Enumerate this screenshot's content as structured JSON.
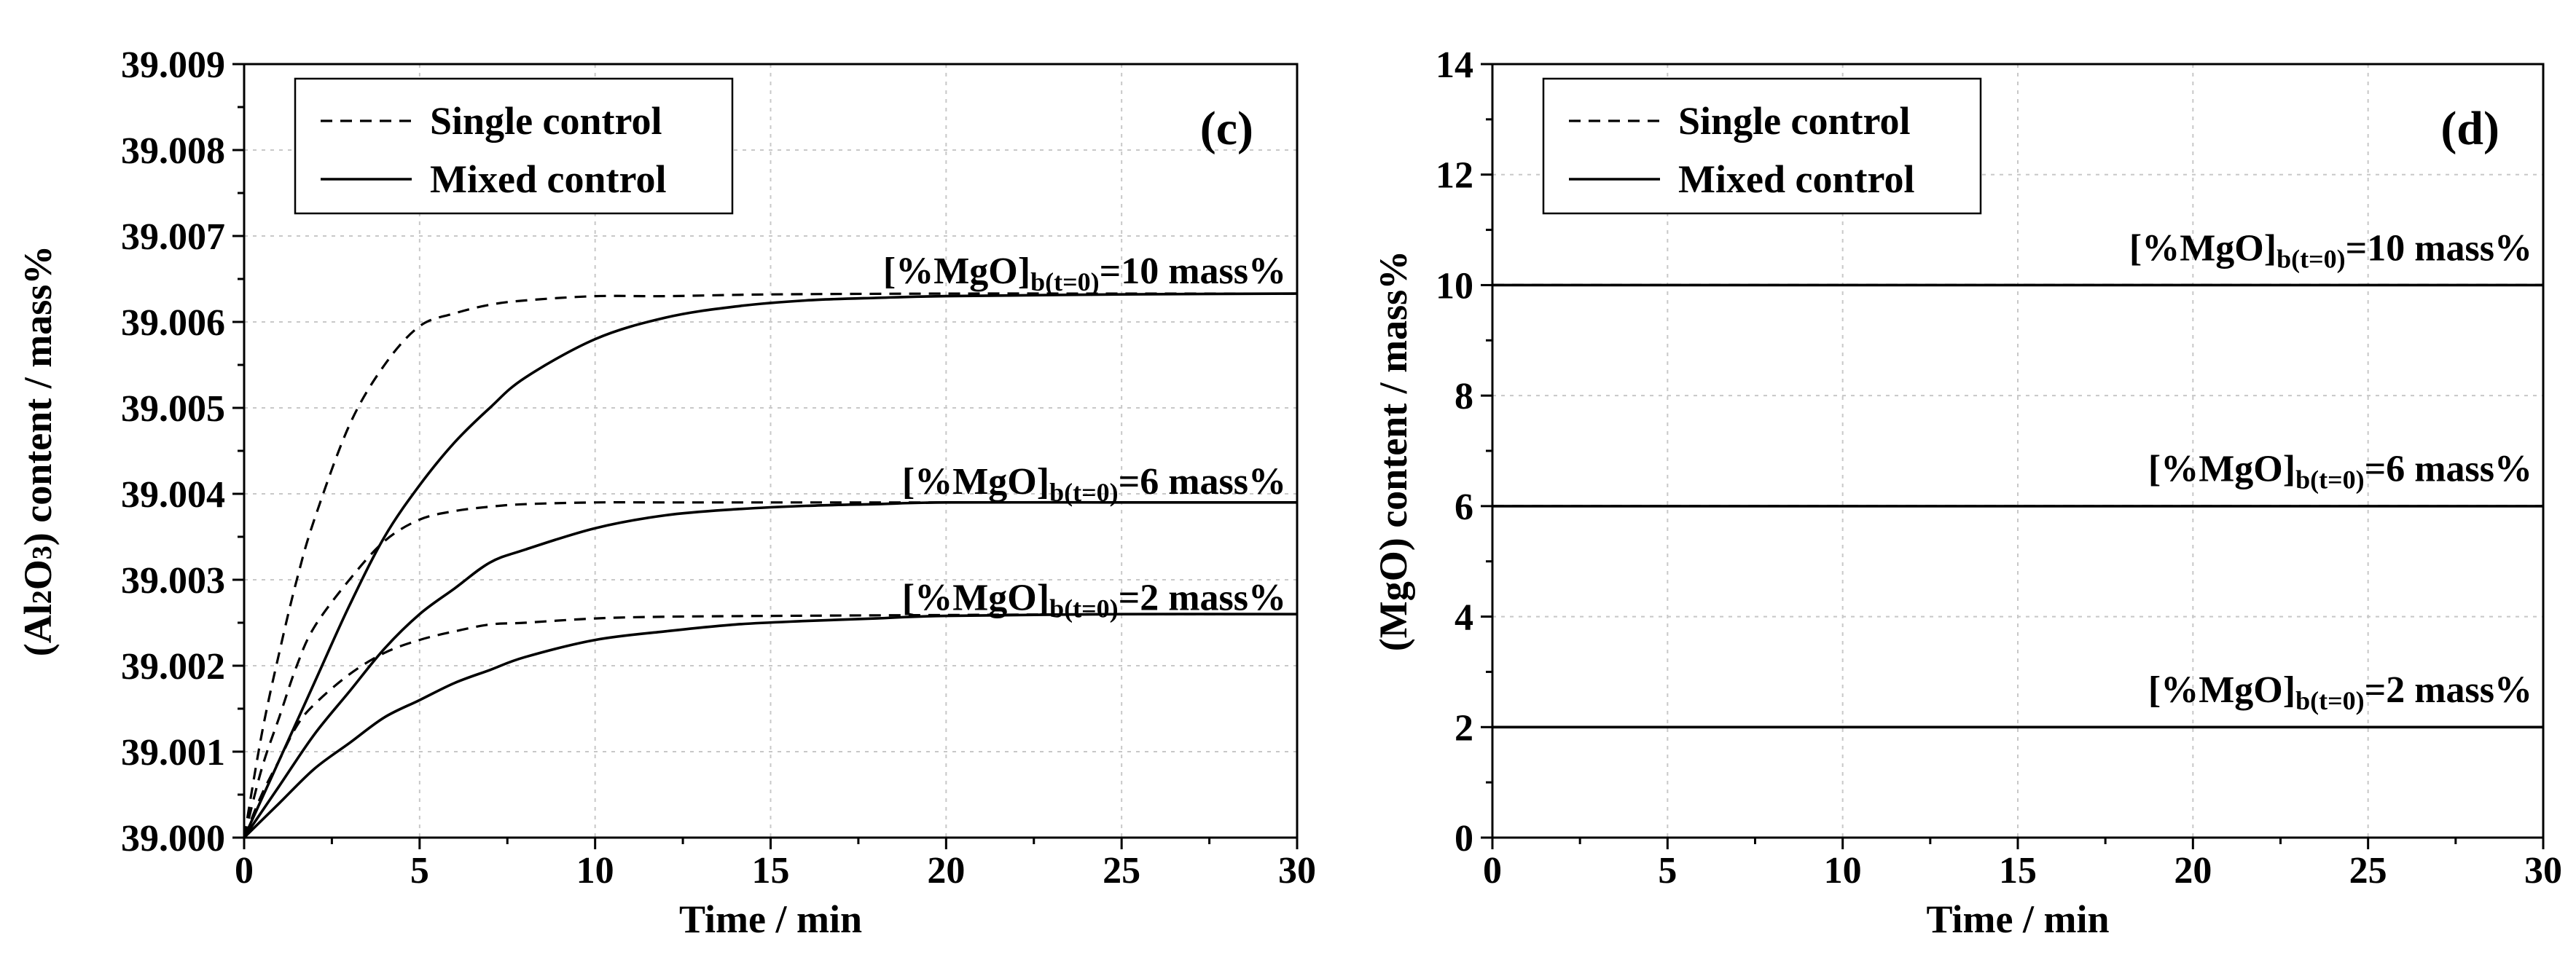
{
  "chart_data": [
    {
      "type": "line",
      "panel": "(c)",
      "xlabel": "Time / min",
      "ylabel": "(Al₂O₃) content / mass%",
      "xlim": [
        0,
        30
      ],
      "ylim": [
        39.0,
        39.009
      ],
      "xticks": [
        0,
        5,
        10,
        15,
        20,
        25,
        30
      ],
      "xtick_labels": [
        "0",
        "5",
        "10",
        "15",
        "20",
        "25",
        "30"
      ],
      "yticks": [
        39.0,
        39.001,
        39.002,
        39.003,
        39.004,
        39.005,
        39.006,
        39.007,
        39.008,
        39.009
      ],
      "ytick_labels": [
        "39.000",
        "39.001",
        "39.002",
        "39.003",
        "39.004",
        "39.005",
        "39.006",
        "39.007",
        "39.008",
        "39.009"
      ],
      "grid": true,
      "legend": {
        "position": "top-left",
        "entries": [
          "Single control",
          "Mixed control"
        ]
      },
      "annotations": [
        {
          "main": "[%MgO]",
          "sub": "b(t=0)",
          "tail": "=10 mass%",
          "anchor_y": 39.00645
        },
        {
          "main": "[%MgO]",
          "sub": "b(t=0)",
          "tail": "=6 mass%",
          "anchor_y": 39.004
        },
        {
          "main": "[%MgO]",
          "sub": "b(t=0)",
          "tail": "=2 mass%",
          "anchor_y": 39.00265
        }
      ],
      "series": [
        {
          "name": "Single control",
          "group": "[%MgO]b(t=0)=10 mass%",
          "style": "dashed",
          "x": [
            0,
            0.5,
            1,
            1.5,
            2,
            3,
            4,
            5,
            6,
            7,
            8,
            10,
            12,
            15,
            20,
            25,
            30
          ],
          "y": [
            39.0,
            39.0012,
            39.00215,
            39.003,
            39.0037,
            39.0048,
            39.0055,
            39.00595,
            39.0061,
            39.0062,
            39.00625,
            39.0063,
            39.0063,
            39.00632,
            39.00633,
            39.00633,
            39.00633
          ]
        },
        {
          "name": "Mixed control",
          "group": "[%MgO]b(t=0)=10 mass%",
          "style": "solid",
          "x": [
            0,
            1,
            2,
            3,
            4,
            5,
            6,
            7,
            8,
            10,
            12,
            14,
            16,
            18,
            20,
            25,
            30
          ],
          "y": [
            39.0,
            39.0009,
            39.0018,
            39.0027,
            39.0035,
            39.0041,
            39.0046,
            39.005,
            39.00535,
            39.0058,
            39.00605,
            39.00618,
            39.00625,
            39.00628,
            39.0063,
            39.00632,
            39.00633
          ]
        },
        {
          "name": "Single control",
          "group": "[%MgO]b(t=0)=6 mass%",
          "style": "dashed",
          "x": [
            0,
            0.5,
            1,
            1.5,
            2,
            3,
            4,
            5,
            6,
            7,
            8,
            10,
            12,
            15,
            20,
            25,
            30
          ],
          "y": [
            39.0,
            39.0008,
            39.0014,
            39.002,
            39.00245,
            39.003,
            39.00345,
            39.0037,
            39.0038,
            39.00385,
            39.00388,
            39.0039,
            39.0039,
            39.0039,
            39.0039,
            39.0039,
            39.0039
          ]
        },
        {
          "name": "Mixed control",
          "group": "[%MgO]b(t=0)=6 mass%",
          "style": "solid",
          "x": [
            0,
            1,
            2,
            3,
            4,
            5,
            6,
            7,
            8,
            10,
            12,
            14,
            16,
            18,
            20,
            25,
            30
          ],
          "y": [
            39.0,
            39.0006,
            39.0012,
            39.0017,
            39.0022,
            39.0026,
            39.0029,
            39.0032,
            39.00335,
            39.0036,
            39.00375,
            39.00382,
            39.00386,
            39.00388,
            39.0039,
            39.0039,
            39.0039
          ]
        },
        {
          "name": "Single control",
          "group": "[%MgO]b(t=0)=2 mass%",
          "style": "dashed",
          "x": [
            0,
            0.5,
            1,
            1.5,
            2,
            3,
            4,
            5,
            6,
            7,
            8,
            10,
            12,
            15,
            20,
            25,
            30
          ],
          "y": [
            39.0,
            39.0005,
            39.0009,
            39.0013,
            39.00155,
            39.0019,
            39.00215,
            39.0023,
            39.0024,
            39.00248,
            39.0025,
            39.00255,
            39.00257,
            39.00258,
            39.00259,
            39.0026,
            39.0026
          ]
        },
        {
          "name": "Mixed control",
          "group": "[%MgO]b(t=0)=2 mass%",
          "style": "solid",
          "x": [
            0,
            1,
            2,
            3,
            4,
            5,
            6,
            7,
            8,
            10,
            12,
            14,
            16,
            18,
            20,
            25,
            30
          ],
          "y": [
            39.0,
            39.0004,
            39.0008,
            39.0011,
            39.0014,
            39.0016,
            39.0018,
            39.00195,
            39.0021,
            39.0023,
            39.0024,
            39.00248,
            39.00252,
            39.00255,
            39.00258,
            39.0026,
            39.0026
          ]
        }
      ]
    },
    {
      "type": "line",
      "panel": "(d)",
      "xlabel": "Time / min",
      "ylabel": "(MgO) content / mass%",
      "xlim": [
        0,
        30
      ],
      "ylim": [
        0,
        14
      ],
      "xticks": [
        0,
        5,
        10,
        15,
        20,
        25,
        30
      ],
      "xtick_labels": [
        "0",
        "5",
        "10",
        "15",
        "20",
        "25",
        "30"
      ],
      "yticks": [
        0,
        2,
        4,
        6,
        8,
        10,
        12,
        14
      ],
      "ytick_labels": [
        "0",
        "2",
        "4",
        "6",
        "8",
        "10",
        "12",
        "14"
      ],
      "grid": true,
      "legend": {
        "position": "top-left",
        "entries": [
          "Single control",
          "Mixed control"
        ]
      },
      "annotations": [
        {
          "main": "[%MgO]",
          "sub": "b(t=0)",
          "tail": "=10 mass%",
          "anchor_y": 10.45
        },
        {
          "main": "[%MgO]",
          "sub": "b(t=0)",
          "tail": "=6 mass%",
          "anchor_y": 6.45
        },
        {
          "main": "[%MgO]",
          "sub": "b(t=0)",
          "tail": "=2 mass%",
          "anchor_y": 2.45
        }
      ],
      "series": [
        {
          "name": "Single control",
          "group": "[%MgO]b(t=0)=10 mass%",
          "style": "dashed",
          "x": [
            0,
            30
          ],
          "y": [
            10,
            10
          ]
        },
        {
          "name": "Mixed control",
          "group": "[%MgO]b(t=0)=10 mass%",
          "style": "solid",
          "x": [
            0,
            30
          ],
          "y": [
            10,
            10
          ]
        },
        {
          "name": "Single control",
          "group": "[%MgO]b(t=0)=6 mass%",
          "style": "dashed",
          "x": [
            0,
            30
          ],
          "y": [
            6,
            6
          ]
        },
        {
          "name": "Mixed control",
          "group": "[%MgO]b(t=0)=6 mass%",
          "style": "solid",
          "x": [
            0,
            30
          ],
          "y": [
            6,
            6
          ]
        },
        {
          "name": "Single control",
          "group": "[%MgO]b(t=0)=2 mass%",
          "style": "dashed",
          "x": [
            0,
            30
          ],
          "y": [
            2,
            2
          ]
        },
        {
          "name": "Mixed control",
          "group": "[%MgO]b(t=0)=2 mass%",
          "style": "solid",
          "x": [
            0,
            30
          ],
          "y": [
            2,
            2
          ]
        }
      ]
    }
  ]
}
